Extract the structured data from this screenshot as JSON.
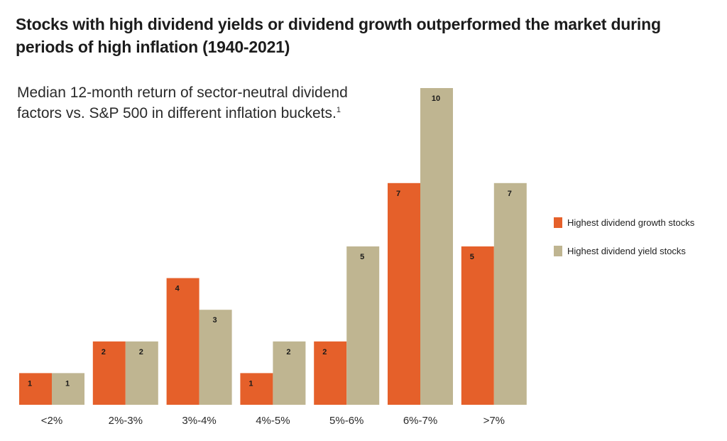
{
  "title": "Stocks with high dividend yields or dividend growth outperformed the market during periods of high inflation (1940-2021)",
  "subtitle": "Median 12-month return of sector-neutral dividend factors vs. S&P 500 in different inflation buckets.",
  "footnote_marker": "1",
  "colors": {
    "growth": "#e5602a",
    "yield": "#bfb591"
  },
  "legend": [
    {
      "label": "Highest dividend growth stocks",
      "color": "#e5602a"
    },
    {
      "label": "Highest dividend yield stocks",
      "color": "#bfb591"
    }
  ],
  "chart_data": {
    "type": "bar",
    "title": "Stocks with high dividend yields or dividend growth outperformed the market during periods of high inflation (1940-2021)",
    "subtitle": "Median 12-month return of sector-neutral dividend factors vs. S&P 500 in different inflation buckets.",
    "categories": [
      "<2%",
      "2%-3%",
      "3%-4%",
      "4%-5%",
      "5%-6%",
      "6%-7%",
      ">7%"
    ],
    "series": [
      {
        "name": "Highest dividend growth stocks",
        "values": [
          1,
          2,
          4,
          1,
          2,
          7,
          5
        ]
      },
      {
        "name": "Highest dividend yield stocks",
        "values": [
          1,
          2,
          3,
          2,
          5,
          10,
          7
        ]
      }
    ],
    "ylim": [
      0,
      10
    ],
    "grid": false,
    "legend_position": "right",
    "xlabel": "",
    "ylabel": ""
  }
}
